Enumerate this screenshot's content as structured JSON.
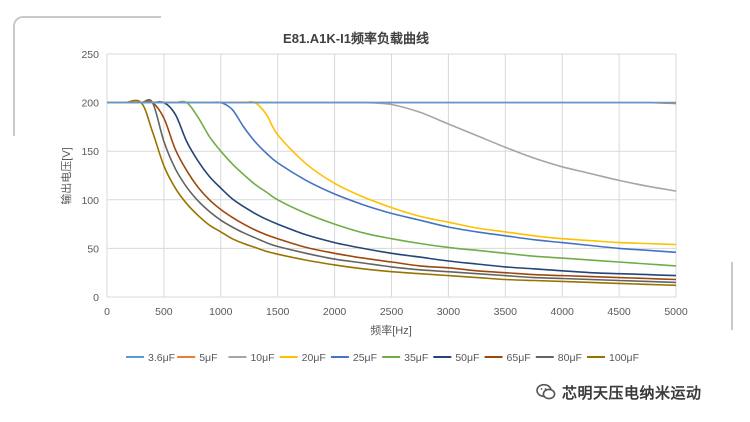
{
  "watermark": {
    "text": "芯明天压电纳米运动"
  },
  "chart_data": {
    "type": "line",
    "title": "E81.A1K-I1频率负载曲线",
    "xlabel": "频率[Hz]",
    "ylabel": "输出电压[V]",
    "xlim": [
      0,
      5000
    ],
    "ylim": [
      0,
      250
    ],
    "xticks": [
      0,
      500,
      1000,
      1500,
      2000,
      2500,
      3000,
      3500,
      4000,
      4500,
      5000
    ],
    "yticks": [
      0,
      50,
      100,
      150,
      200,
      250
    ],
    "grid": true,
    "legend_position": "bottom",
    "x": [
      0,
      150,
      300,
      400,
      500,
      600,
      700,
      800,
      900,
      1000,
      1100,
      1200,
      1300,
      1400,
      1500,
      1750,
      2000,
      2250,
      2500,
      2750,
      3000,
      3250,
      3500,
      3750,
      4000,
      4250,
      4500,
      4750,
      5000
    ],
    "series": [
      {
        "name": "3.6μF",
        "color": "#5b9bd5",
        "values": [
          200,
          200,
          200,
          200,
          200,
          200,
          200,
          200,
          200,
          200,
          200,
          200,
          200,
          200,
          200,
          200,
          200,
          200,
          200,
          200,
          200,
          200,
          200,
          200,
          200,
          200,
          200,
          200,
          200
        ]
      },
      {
        "name": "5μF",
        "color": "#ed7d31",
        "values": [
          200,
          200,
          200,
          200,
          200,
          200,
          200,
          200,
          200,
          200,
          200,
          200,
          200,
          200,
          200,
          200,
          200,
          200,
          200,
          200,
          200,
          200,
          200,
          200,
          200,
          200,
          200,
          200,
          199
        ]
      },
      {
        "name": "10μF",
        "color": "#a5a5a5",
        "values": [
          200,
          200,
          200,
          200,
          200,
          200,
          200,
          200,
          200,
          200,
          200,
          200,
          200,
          200,
          200,
          200,
          200,
          200,
          198,
          190,
          178,
          166,
          154,
          143,
          134,
          127,
          120,
          114,
          109
        ]
      },
      {
        "name": "20μF",
        "color": "#ffc000",
        "values": [
          200,
          200,
          200,
          200,
          200,
          200,
          200,
          200,
          200,
          200,
          200,
          200,
          200,
          188,
          167,
          137,
          117,
          103,
          92,
          83,
          77,
          71,
          67,
          63,
          60,
          58,
          56,
          55,
          54
        ]
      },
      {
        "name": "25μF",
        "color": "#4472c4",
        "values": [
          200,
          200,
          200,
          200,
          200,
          200,
          200,
          200,
          200,
          200,
          193,
          175,
          160,
          148,
          138,
          120,
          106,
          95,
          86,
          79,
          72,
          67,
          63,
          59,
          56,
          53,
          50,
          48,
          46
        ]
      },
      {
        "name": "35μF",
        "color": "#70ad47",
        "values": [
          200,
          200,
          200,
          200,
          200,
          200,
          200,
          185,
          165,
          150,
          137,
          126,
          116,
          108,
          100,
          86,
          75,
          66,
          60,
          55,
          51,
          48,
          45,
          42,
          40,
          38,
          36,
          34,
          32
        ]
      },
      {
        "name": "50μF",
        "color": "#264478",
        "values": [
          200,
          200,
          200,
          200,
          200,
          188,
          160,
          140,
          124,
          112,
          101,
          93,
          86,
          80,
          75,
          64,
          56,
          50,
          45,
          41,
          37,
          34,
          31,
          29,
          27,
          25,
          24,
          23,
          22
        ]
      },
      {
        "name": "65μF",
        "color": "#9e480e",
        "values": [
          200,
          200,
          200,
          200,
          184,
          152,
          130,
          113,
          100,
          90,
          82,
          75,
          69,
          64,
          60,
          51,
          45,
          40,
          36,
          32,
          30,
          27,
          25,
          23,
          22,
          21,
          20,
          19,
          18
        ]
      },
      {
        "name": "80μF",
        "color": "#636363",
        "values": [
          200,
          200,
          200,
          200,
          160,
          132,
          113,
          99,
          88,
          79,
          72,
          66,
          61,
          56,
          52,
          45,
          39,
          35,
          31,
          28,
          26,
          24,
          22,
          20,
          19,
          18,
          17,
          16,
          15
        ]
      },
      {
        "name": "100μF",
        "color": "#997300",
        "values": [
          200,
          200,
          200,
          170,
          135,
          112,
          96,
          84,
          74,
          67,
          60,
          55,
          51,
          47,
          44,
          38,
          33,
          29,
          26,
          24,
          22,
          20,
          18,
          17,
          16,
          15,
          14,
          13,
          12
        ]
      }
    ]
  }
}
